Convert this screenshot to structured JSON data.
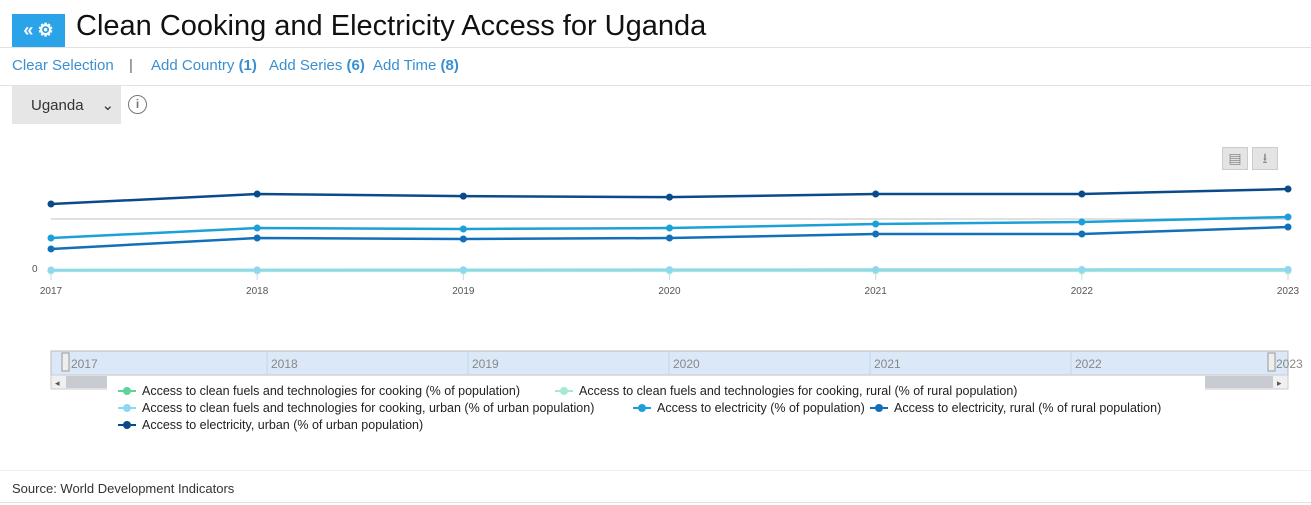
{
  "header": {
    "button_label": "«",
    "title": "Clean Cooking and Electricity Access for Uganda"
  },
  "links": {
    "clear": "Clear Selection",
    "sep": "|",
    "add_country": "Add Country",
    "add_country_count": "(1)",
    "add_series": "Add Series",
    "add_series_count": "(6)",
    "add_time": "Add Time",
    "add_time_count": "(8)"
  },
  "country_select": {
    "value": "Uganda"
  },
  "info_icon": "i",
  "toolbar": {
    "print": "print-icon",
    "download": "download-icon"
  },
  "source": "Source: World Development Indicators",
  "chart_data": {
    "type": "line",
    "title": "Clean Cooking and Electricity Access for Uganda",
    "x": [
      "2017",
      "2018",
      "2019",
      "2020",
      "2021",
      "2022",
      "2023"
    ],
    "ytick_labels": [
      "0"
    ],
    "ylim": [
      0,
      85
    ],
    "series": [
      {
        "name": "Access to clean fuels and technologies for cooking (% of population)",
        "color": "#5dd39e",
        "values": [
          0.5,
          0.5,
          0.6,
          0.6,
          0.7,
          0.8,
          0.9
        ]
      },
      {
        "name": "Access to clean fuels and technologies for cooking, rural (% of rural population)",
        "color": "#a6e8d0",
        "values": [
          0.1,
          0.1,
          0.1,
          0.1,
          0.1,
          0.1,
          0.1
        ]
      },
      {
        "name": "Access to clean fuels and technologies for cooking, urban (% of urban population)",
        "color": "#8fd6f0",
        "values": [
          1.0,
          1.1,
          1.2,
          1.3,
          1.4,
          1.5,
          1.6
        ]
      },
      {
        "name": "Access to electricity (% of population)",
        "color": "#1ba1d8",
        "values": [
          31.7,
          41.3,
          40.4,
          41.3,
          45.2,
          47.1,
          51.9
        ]
      },
      {
        "name": "Access to electricity, rural (% of rural population)",
        "color": "#1170b8",
        "values": [
          21.2,
          31.7,
          30.8,
          31.7,
          35.6,
          35.6,
          42.3
        ]
      },
      {
        "name": "Access to electricity, urban (% of urban population)",
        "color": "#0b4a8a",
        "values": [
          64.4,
          74.0,
          72.0,
          71.0,
          74.0,
          74.0,
          78.8
        ]
      }
    ],
    "navigator_labels": [
      "2017",
      "2018",
      "2019",
      "2020",
      "2021",
      "2022",
      "2023"
    ],
    "legend_placement": "bottom"
  }
}
